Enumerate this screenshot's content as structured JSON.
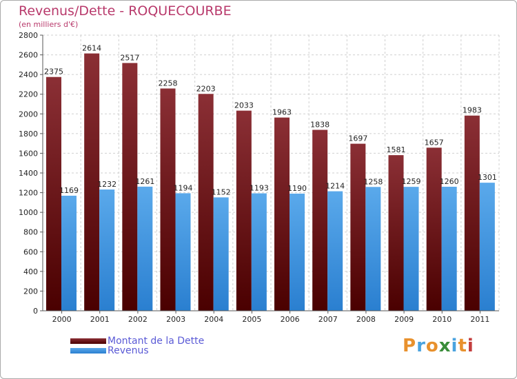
{
  "chart_data": {
    "type": "bar",
    "title": "Revenus/Dette - ROQUECOURBE",
    "subtitle": "(en milliers d'€)",
    "xlabel": "",
    "ylabel": "",
    "ylim": [
      0,
      2800
    ],
    "yticks": [
      0,
      200,
      400,
      600,
      800,
      1000,
      1200,
      1400,
      1600,
      1800,
      2000,
      2200,
      2400,
      2600,
      2800
    ],
    "categories": [
      "2000",
      "2001",
      "2002",
      "2003",
      "2004",
      "2005",
      "2006",
      "2007",
      "2008",
      "2009",
      "2010",
      "2011"
    ],
    "grid": true,
    "legend_position": "bottom-left",
    "series": [
      {
        "name": "Montant de la Dette",
        "color_top": "#8b2f35",
        "color_bottom": "#4a0000",
        "values": [
          2375,
          2614,
          2517,
          2258,
          2203,
          2033,
          1963,
          1838,
          1697,
          1581,
          1657,
          1983
        ]
      },
      {
        "name": "Revenus",
        "color_top": "#5aa9eb",
        "color_bottom": "#2a7fd0",
        "values": [
          1169,
          1232,
          1261,
          1194,
          1152,
          1193,
          1190,
          1214,
          1258,
          1259,
          1260,
          1301
        ]
      }
    ]
  },
  "logo": {
    "letters": [
      "P",
      "r",
      "o",
      "x",
      "i",
      "t",
      "i"
    ],
    "colors": [
      "#e8912d",
      "#4aa3df",
      "#e8912d",
      "#3a8d3a",
      "#4aa3df",
      "#e8912d",
      "#c33d3d"
    ]
  }
}
